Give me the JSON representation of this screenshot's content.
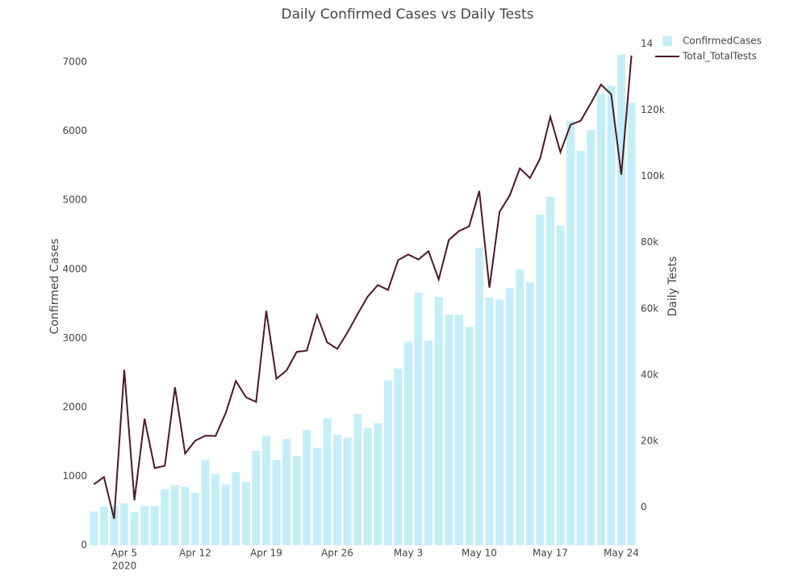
{
  "chart_data": {
    "type": "bar_line",
    "title": "Daily Confirmed Cases vs Daily Tests",
    "y_label": "Confirmed Cases",
    "y2_label": "Daily Tests",
    "x": [
      "2020-04-02",
      "2020-04-03",
      "2020-04-04",
      "2020-04-05",
      "2020-04-06",
      "2020-04-07",
      "2020-04-08",
      "2020-04-09",
      "2020-04-10",
      "2020-04-11",
      "2020-04-12",
      "2020-04-13",
      "2020-04-14",
      "2020-04-15",
      "2020-04-16",
      "2020-04-17",
      "2020-04-18",
      "2020-04-19",
      "2020-04-20",
      "2020-04-21",
      "2020-04-22",
      "2020-04-23",
      "2020-04-24",
      "2020-04-25",
      "2020-04-26",
      "2020-04-27",
      "2020-04-28",
      "2020-04-29",
      "2020-04-30",
      "2020-05-01",
      "2020-05-02",
      "2020-05-03",
      "2020-05-04",
      "2020-05-05",
      "2020-05-06",
      "2020-05-07",
      "2020-05-08",
      "2020-05-09",
      "2020-05-10",
      "2020-05-11",
      "2020-05-12",
      "2020-05-13",
      "2020-05-14",
      "2020-05-15",
      "2020-05-16",
      "2020-05-17",
      "2020-05-18",
      "2020-05-19",
      "2020-05-20",
      "2020-05-21",
      "2020-05-22",
      "2020-05-23",
      "2020-05-24",
      "2020-05-25"
    ],
    "series": [
      {
        "name": "ConfirmedCases",
        "type": "bar",
        "color": "#c4eff9",
        "values": [
          490,
          560,
          570,
          610,
          480,
          570,
          570,
          810,
          870,
          850,
          760,
          1240,
          1030,
          880,
          1060,
          920,
          1370,
          1580,
          1240,
          1540,
          1290,
          1670,
          1410,
          1840,
          1600,
          1560,
          1900,
          1700,
          1770,
          2390,
          2560,
          2950,
          3660,
          2970,
          3600,
          3340,
          3340,
          3170,
          4310,
          3590,
          3560,
          3730,
          4000,
          3810,
          4790,
          5050,
          4630,
          6150,
          5720,
          6020,
          6540,
          6660,
          7110,
          6410
        ]
      },
      {
        "name": "Total_TotalTests",
        "type": "line",
        "axis": "y2",
        "color": "#4a1a22",
        "values": [
          7000,
          9200,
          -3400,
          41600,
          2200,
          26800,
          11900,
          12600,
          36300,
          16300,
          20200,
          21700,
          21600,
          28500,
          38200,
          33300,
          31900,
          59400,
          38900,
          41400,
          47000,
          47400,
          58100,
          49900,
          47900,
          52800,
          58400,
          63700,
          67200,
          65700,
          74700,
          76400,
          74900,
          77400,
          68900,
          80800,
          83500,
          84900,
          95600,
          66400,
          89300,
          94200,
          102400,
          99500,
          105400,
          118000,
          107300,
          115600,
          116800,
          122100,
          127700,
          124800,
          100500,
          136500
        ]
      }
    ],
    "xlim": [
      "2020-04-01T12:00:00Z",
      "2020-05-25T18:00:00Z"
    ],
    "xticks": [
      {
        "value": "2020-04-05",
        "label": "Apr 5"
      },
      {
        "value": "2020-04-12",
        "label": "Apr 12"
      },
      {
        "value": "2020-04-19",
        "label": "Apr 19"
      },
      {
        "value": "2020-04-26",
        "label": "Apr 26"
      },
      {
        "value": "2020-05-03",
        "label": "May 3"
      },
      {
        "value": "2020-05-10",
        "label": "May 10"
      },
      {
        "value": "2020-05-17",
        "label": "May 17"
      },
      {
        "value": "2020-05-24",
        "label": "May 24"
      }
    ],
    "x_year_label": "2020",
    "ylim": [
      0,
      7270
    ],
    "yticks": [
      0,
      1000,
      2000,
      3000,
      4000,
      5000,
      6000,
      7000
    ],
    "y2lim": [
      -11400,
      140100
    ],
    "y2ticks": [
      0,
      {
        "value": 20000,
        "label": "20k"
      },
      {
        "value": 40000,
        "label": "40k"
      },
      {
        "value": 60000,
        "label": "60k"
      },
      {
        "value": 80000,
        "label": "80k"
      },
      {
        "value": 100000,
        "label": "100k"
      },
      {
        "value": 120000,
        "label": "120k"
      },
      {
        "value": 140000,
        "label": "140k"
      }
    ],
    "grid": false
  }
}
